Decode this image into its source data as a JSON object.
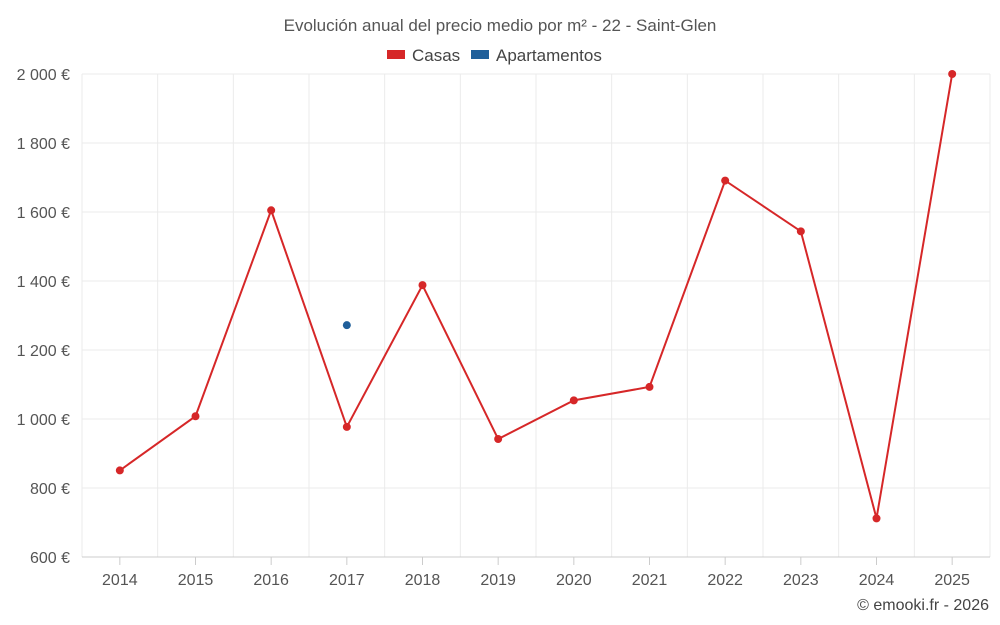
{
  "chart_data": {
    "type": "line",
    "title": "Evolución anual del precio medio por m² - 22 - Saint-Glen",
    "categories": [
      "2014",
      "2015",
      "2016",
      "2017",
      "2018",
      "2019",
      "2020",
      "2021",
      "2022",
      "2023",
      "2024",
      "2025"
    ],
    "series": [
      {
        "name": "Casas",
        "color": "#d62728",
        "values": [
          851,
          1008,
          1605,
          977,
          1388,
          942,
          1054,
          1093,
          1691,
          1544,
          712,
          2000
        ]
      },
      {
        "name": "Apartamentos",
        "color": "#1f5f9a",
        "values": [
          null,
          null,
          null,
          1272,
          null,
          null,
          null,
          null,
          null,
          null,
          null,
          null
        ]
      }
    ],
    "ylim": [
      600,
      2000
    ],
    "yticks": [
      600,
      800,
      1000,
      1200,
      1400,
      1600,
      1800,
      2000
    ],
    "ytick_labels": [
      "600 €",
      "800 €",
      "1 000 €",
      "1 200 €",
      "1 400 €",
      "1 600 €",
      "1 800 €",
      "2 000 €"
    ],
    "xlabel": "",
    "ylabel": "",
    "grid": true,
    "legend_position": "top-center"
  },
  "credit": "© emooki.fr - 2026"
}
